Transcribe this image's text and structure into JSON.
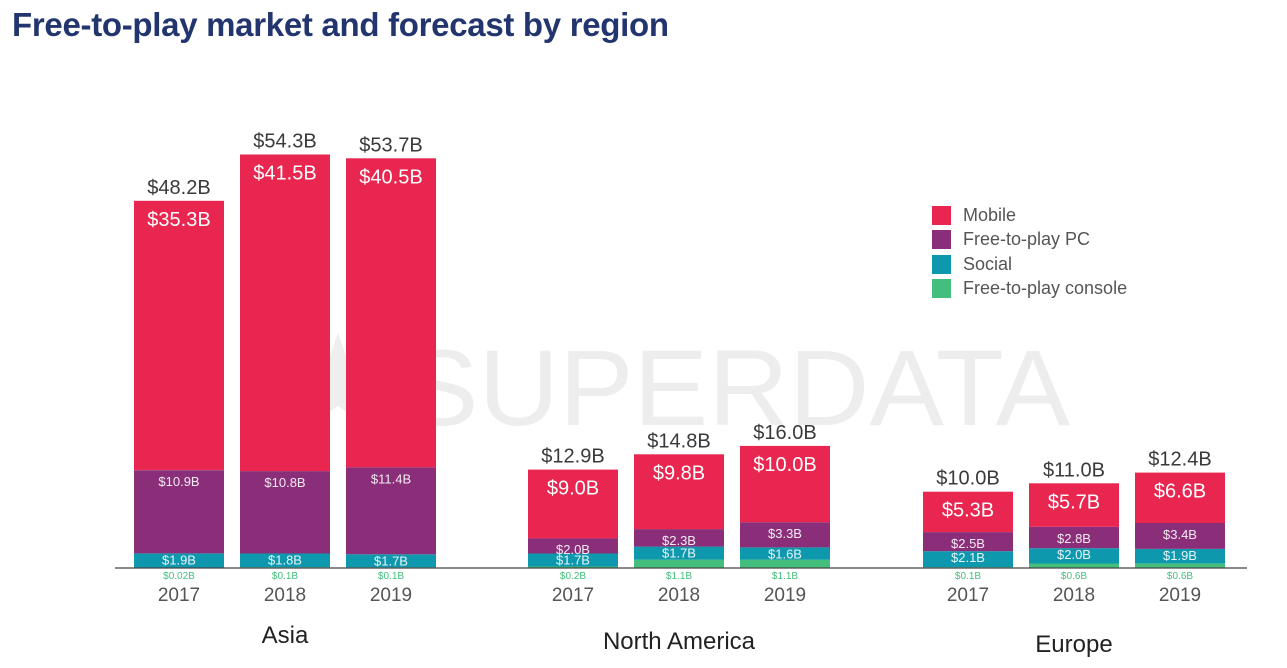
{
  "title": "Free-to-play market and forecast by region",
  "watermark": "SUPERDATA",
  "colors": {
    "Mobile": "#e8264f",
    "Free-to-play PC": "#8a2e79",
    "Social": "#0d98ad",
    "Free-to-play console": "#43be7d"
  },
  "legend": [
    "Mobile",
    "Free-to-play PC",
    "Social",
    "Free-to-play console"
  ],
  "chart_data": {
    "type": "bar",
    "stacked": true,
    "legend_position": "top-right",
    "groups": [
      "Asia",
      "North America",
      "Europe"
    ],
    "categories": [
      "2017",
      "2018",
      "2019"
    ],
    "series": [
      {
        "name": "Free-to-play console",
        "values": [
          [
            0.02,
            0.1,
            0.1
          ],
          [
            0.2,
            1.1,
            1.1
          ],
          [
            0.1,
            0.6,
            0.6
          ]
        ],
        "labels": [
          [
            "$0.02B",
            "$0.1B",
            "$0.1B"
          ],
          [
            "$0.2B",
            "$1.1B",
            "$1.1B"
          ],
          [
            "$0.1B",
            "$0.6B",
            "$0.6B"
          ]
        ]
      },
      {
        "name": "Social",
        "values": [
          [
            1.9,
            1.8,
            1.7
          ],
          [
            1.7,
            1.7,
            1.6
          ],
          [
            2.1,
            2.0,
            1.9
          ]
        ],
        "labels": [
          [
            "$1.9B",
            "$1.8B",
            "$1.7B"
          ],
          [
            "$1.7B",
            "$1.7B",
            "$1.6B"
          ],
          [
            "$2.1B",
            "$2.0B",
            "$1.9B"
          ]
        ]
      },
      {
        "name": "Free-to-play PC",
        "values": [
          [
            10.9,
            10.8,
            11.4
          ],
          [
            2.0,
            2.3,
            3.3
          ],
          [
            2.5,
            2.8,
            3.4
          ]
        ],
        "labels": [
          [
            "$10.9B",
            "$10.8B",
            "$11.4B"
          ],
          [
            "$2.0B",
            "$2.3B",
            "$3.3B"
          ],
          [
            "$2.5B",
            "$2.8B",
            "$3.4B"
          ]
        ]
      },
      {
        "name": "Mobile",
        "values": [
          [
            35.3,
            41.5,
            40.5
          ],
          [
            9.0,
            9.8,
            10.0
          ],
          [
            5.3,
            5.7,
            6.6
          ]
        ],
        "labels": [
          [
            "$35.3B",
            "$41.5B",
            "$40.5B"
          ],
          [
            "$9.0B",
            "$9.8B",
            "$10.0B"
          ],
          [
            "$5.3B",
            "$5.7B",
            "$6.6B"
          ]
        ]
      }
    ],
    "totals": [
      [
        48.2,
        54.3,
        53.7
      ],
      [
        12.9,
        14.8,
        16.0
      ],
      [
        10.0,
        11.0,
        12.4
      ]
    ],
    "total_labels": [
      [
        "$48.2B",
        "$54.3B",
        "$53.7B"
      ],
      [
        "$12.9B",
        "$14.8B",
        "$16.0B"
      ],
      [
        "$10.0B",
        "$11.0B",
        "$12.4B"
      ]
    ],
    "ylim": [
      0,
      55
    ]
  }
}
